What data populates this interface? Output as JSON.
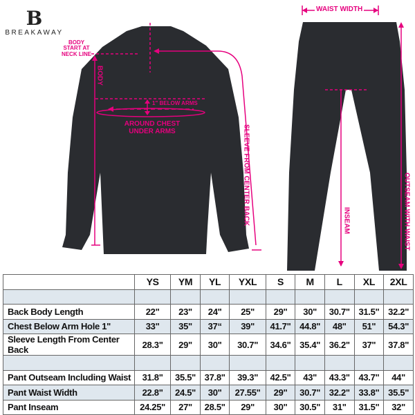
{
  "brand": {
    "logo_letter": "B",
    "name": "BREAKAWAY"
  },
  "annotations": {
    "body_start": "BODY START AT NECK LINE",
    "body": "BODY",
    "below_arms": "1\" BELOW ARMS",
    "chest": "AROUND CHEST UNDER ARMS",
    "sleeve": "SLEEVE FROM CENTER BACK",
    "waist_width": "WAIST WIDTH",
    "inseam": "INSEAM",
    "outseam": "OUTSEAM WITH WAIST"
  },
  "colors": {
    "accent": "#e6007e",
    "garment": "#2a2c30",
    "row_highlight": "#dfe7ee"
  },
  "table": {
    "sizes": [
      "YS",
      "YM",
      "YL",
      "YXL",
      "S",
      "M",
      "L",
      "XL",
      "2XL"
    ],
    "rows": [
      {
        "label": "",
        "values": [
          "",
          "",
          "",
          "",
          "",
          "",
          "",
          "",
          ""
        ]
      },
      {
        "label": "Back Body Length",
        "values": [
          "22\"",
          "23\"",
          "24\"",
          "25\"",
          "29\"",
          "30\"",
          "30.7\"",
          "31.5\"",
          "32.2\""
        ]
      },
      {
        "label": "Chest Below Arm Hole 1\"",
        "values": [
          "33\"",
          "35\"",
          "37“",
          "39\"",
          "41.7\"",
          "44.8\"",
          "48\"",
          "51\"",
          "54.3\""
        ]
      },
      {
        "label": "Sleeve Length From Center Back",
        "values": [
          "28.3\"",
          "29\"",
          "30\"",
          "30.7\"",
          "34.6\"",
          "35.4\"",
          "36.2\"",
          "37\"",
          "37.8\""
        ]
      },
      {
        "label": "",
        "values": [
          "",
          "",
          "",
          "",
          "",
          "",
          "",
          "",
          ""
        ]
      },
      {
        "label": "Pant Outseam Including Waist",
        "values": [
          "31.8\"",
          "35.5\"",
          "37.8\"",
          "39.3\"",
          "42.5\"",
          "43\"",
          "43.3\"",
          "43.7\"",
          "44\""
        ]
      },
      {
        "label": "Pant Waist Width",
        "values": [
          "22.8\"",
          "24.5\"",
          "30\"",
          "27.55\"",
          "29\"",
          "30.7\"",
          "32.2\"",
          "33.8\"",
          "35.5\""
        ]
      },
      {
        "label": "Pant Inseam",
        "values": [
          "24.25\"",
          "27\"",
          "28.5\"",
          "29\"",
          "30\"",
          "30.5\"",
          "31\"",
          "31.5\"",
          "32\""
        ]
      }
    ]
  }
}
